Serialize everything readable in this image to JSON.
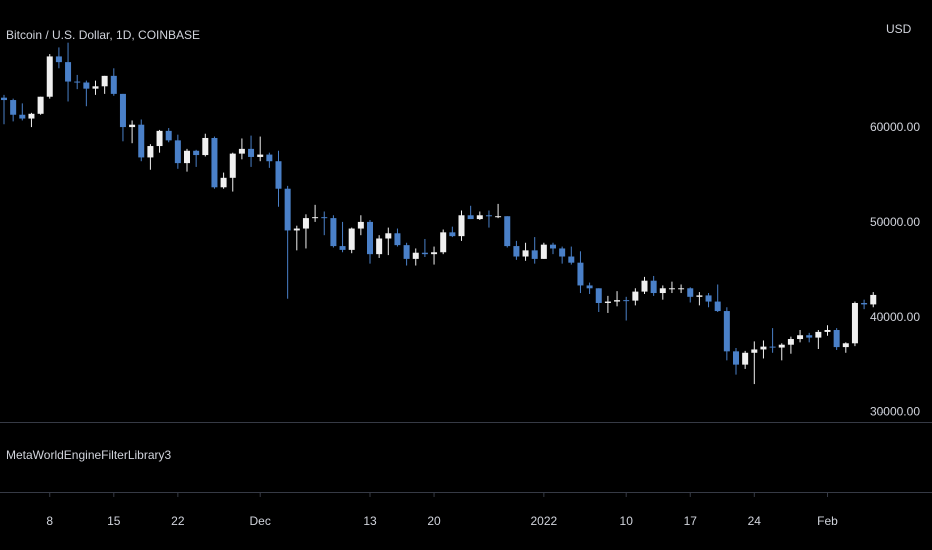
{
  "chart_data": {
    "type": "candlestick",
    "title": "Bitcoin / U.S. Dollar, 1D, COINBASE",
    "y_axis_label": "USD",
    "indicator_label": "MetaWorldEngineFilterLibrary3",
    "up_color": "#f0f0f0",
    "down_color": "#4a80c8",
    "x": [
      "2021-11-03",
      "2021-11-04",
      "2021-11-05",
      "2021-11-06",
      "2021-11-07",
      "2021-11-08",
      "2021-11-09",
      "2021-11-10",
      "2021-11-11",
      "2021-11-12",
      "2021-11-13",
      "2021-11-14",
      "2021-11-15",
      "2021-11-16",
      "2021-11-17",
      "2021-11-18",
      "2021-11-19",
      "2021-11-20",
      "2021-11-21",
      "2021-11-22",
      "2021-11-23",
      "2021-11-24",
      "2021-11-25",
      "2021-11-26",
      "2021-11-27",
      "2021-11-28",
      "2021-11-29",
      "2021-11-30",
      "2021-12-01",
      "2021-12-02",
      "2021-12-03",
      "2021-12-04",
      "2021-12-05",
      "2021-12-06",
      "2021-12-07",
      "2021-12-08",
      "2021-12-09",
      "2021-12-10",
      "2021-12-11",
      "2021-12-12",
      "2021-12-13",
      "2021-12-14",
      "2021-12-15",
      "2021-12-16",
      "2021-12-17",
      "2021-12-18",
      "2021-12-19",
      "2021-12-20",
      "2021-12-21",
      "2021-12-22",
      "2021-12-23",
      "2021-12-24",
      "2021-12-25",
      "2021-12-26",
      "2021-12-27",
      "2021-12-28",
      "2021-12-29",
      "2021-12-30",
      "2021-12-31",
      "2022-01-01",
      "2022-01-02",
      "2022-01-03",
      "2022-01-04",
      "2022-01-05",
      "2022-01-06",
      "2022-01-07",
      "2022-01-08",
      "2022-01-09",
      "2022-01-10",
      "2022-01-11",
      "2022-01-12",
      "2022-01-13",
      "2022-01-14",
      "2022-01-15",
      "2022-01-16",
      "2022-01-17",
      "2022-01-18",
      "2022-01-19",
      "2022-01-20",
      "2022-01-21",
      "2022-01-22",
      "2022-01-23",
      "2022-01-24",
      "2022-01-25",
      "2022-01-26",
      "2022-01-27",
      "2022-01-28",
      "2022-01-29",
      "2022-01-30",
      "2022-01-31",
      "2022-02-01",
      "2022-02-02",
      "2022-02-03",
      "2022-02-04",
      "2022-02-05",
      "2022-02-06"
    ],
    "open": [
      63200,
      62950,
      61400,
      61000,
      61500,
      63300,
      67550,
      66950,
      64900,
      64800,
      64150,
      64400,
      65500,
      63600,
      60100,
      60350,
      56900,
      58100,
      59700,
      58700,
      56300,
      57600,
      57150,
      58950,
      53750,
      54750,
      57300,
      57800,
      56950,
      57200,
      56500,
      53600,
      49200,
      49400,
      50500,
      50600,
      50500,
      47550,
      47150,
      49400,
      50100,
      46700,
      48350,
      48900,
      47650,
      46200,
      46850,
      46700,
      46900,
      49000,
      48600,
      50800,
      50400,
      50800,
      50700,
      50700,
      47550,
      46450,
      47100,
      46200,
      47700,
      47300,
      46450,
      45800,
      43400,
      43100,
      41550,
      41700,
      41850,
      41800,
      42750,
      43900,
      42600,
      43100,
      43100,
      43100,
      42200,
      42350,
      41700,
      40700,
      36450,
      35050,
      36300,
      36650,
      36950,
      36850,
      37150,
      37750,
      38150,
      37900,
      38500,
      38700,
      36900,
      37300,
      41550,
      41400
    ],
    "high": [
      63500,
      63100,
      62600,
      61600,
      63300,
      67800,
      68500,
      69000,
      65600,
      65000,
      65000,
      65500,
      66300,
      63600,
      60800,
      60900,
      58300,
      59800,
      60000,
      59300,
      57800,
      57700,
      59400,
      59100,
      55300,
      57400,
      58900,
      59200,
      59100,
      57400,
      57600,
      53900,
      49700,
      50900,
      51900,
      51200,
      50800,
      50100,
      49500,
      50800,
      50300,
      48700,
      49500,
      49400,
      47900,
      47300,
      48300,
      47500,
      49300,
      49600,
      51300,
      51800,
      51200,
      51300,
      52000,
      50700,
      48100,
      47900,
      48500,
      47900,
      47900,
      47500,
      47500,
      47000,
      43700,
      43100,
      42300,
      42800,
      42200,
      43100,
      44300,
      44400,
      43400,
      43800,
      43500,
      43200,
      42700,
      42600,
      43500,
      41100,
      36800,
      36500,
      37500,
      37600,
      38900,
      37300,
      38000,
      38700,
      38400,
      38700,
      39200,
      38900,
      37400,
      41700,
      41900,
      42700
    ],
    "low": [
      60400,
      60700,
      60800,
      60100,
      61400,
      63100,
      66300,
      62800,
      64100,
      62300,
      63500,
      63600,
      63400,
      58600,
      58400,
      56500,
      55600,
      57400,
      58500,
      55700,
      55400,
      55900,
      57000,
      53600,
      53600,
      53300,
      56700,
      55900,
      56500,
      55800,
      51700,
      42000,
      47100,
      47300,
      50100,
      48700,
      47400,
      46900,
      46800,
      48700,
      45700,
      46300,
      46600,
      47500,
      45500,
      45500,
      46400,
      45600,
      46700,
      48500,
      48100,
      50400,
      50300,
      49500,
      50500,
      47400,
      46100,
      46000,
      45700,
      46200,
      46700,
      45700,
      45600,
      42600,
      42500,
      40600,
      40500,
      41200,
      39700,
      41300,
      42500,
      42300,
      41900,
      42600,
      42600,
      41600,
      41300,
      41100,
      40600,
      35500,
      34000,
      34600,
      33000,
      35700,
      36300,
      35500,
      36200,
      37400,
      37400,
      36700,
      38100,
      36600,
      36300,
      37000,
      40900,
      41100
    ],
    "close": [
      62950,
      61400,
      61000,
      61500,
      63300,
      67550,
      66950,
      64900,
      64800,
      64150,
      64400,
      65500,
      63600,
      60100,
      60350,
      56900,
      58100,
      59700,
      58700,
      56300,
      57600,
      57150,
      58950,
      53750,
      54750,
      57300,
      57800,
      56950,
      57200,
      56500,
      53600,
      49200,
      49400,
      50500,
      50600,
      50500,
      47550,
      47150,
      49400,
      50100,
      46700,
      48350,
      48900,
      47650,
      46200,
      46850,
      46700,
      46900,
      49000,
      48600,
      50800,
      50400,
      50800,
      50700,
      50700,
      47550,
      46450,
      47100,
      46200,
      47700,
      47300,
      46450,
      45800,
      43400,
      43100,
      41550,
      41700,
      41850,
      41800,
      42750,
      43900,
      42600,
      43100,
      43100,
      43100,
      42200,
      42350,
      41700,
      40700,
      36450,
      35050,
      36300,
      36650,
      36950,
      36850,
      37150,
      37750,
      38150,
      37900,
      38500,
      38700,
      36900,
      37300,
      41550,
      41400,
      42400
    ],
    "ylim": [
      29000,
      73500
    ],
    "yticks": [
      {
        "value": 30000,
        "label": "30000.00"
      },
      {
        "value": 40000,
        "label": "40000.00"
      },
      {
        "value": 50000,
        "label": "50000.00"
      },
      {
        "value": 60000,
        "label": "60000.00"
      }
    ],
    "xticks": [
      {
        "value": "2021-11-08",
        "label": "8"
      },
      {
        "value": "2021-11-15",
        "label": "15"
      },
      {
        "value": "2021-11-22",
        "label": "22"
      },
      {
        "value": "2021-12-01",
        "label": "Dec"
      },
      {
        "value": "2021-12-13",
        "label": "13"
      },
      {
        "value": "2021-12-20",
        "label": "20"
      },
      {
        "value": "2022-01-01",
        "label": "2022"
      },
      {
        "value": "2022-01-10",
        "label": "10"
      },
      {
        "value": "2022-01-17",
        "label": "17"
      },
      {
        "value": "2022-01-24",
        "label": "24"
      },
      {
        "value": "2022-02-01",
        "label": "Feb"
      }
    ]
  }
}
